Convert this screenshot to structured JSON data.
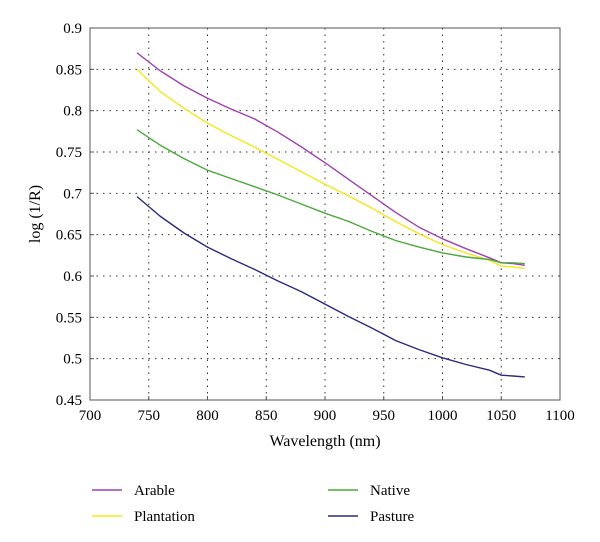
{
  "chart_data": {
    "type": "line",
    "title": "",
    "xlabel": "Wavelength (nm)",
    "ylabel": "log (1/R)",
    "xlim": [
      700,
      1100
    ],
    "ylim": [
      0.45,
      0.9
    ],
    "xticks": [
      700,
      750,
      800,
      850,
      900,
      950,
      1000,
      1050,
      1100
    ],
    "yticks": [
      0.45,
      0.5,
      0.55,
      0.6,
      0.65,
      0.7,
      0.75,
      0.8,
      0.85,
      0.9
    ],
    "xtick_labels": [
      "700",
      "750",
      "800",
      "850",
      "900",
      "950",
      "1000",
      "1050",
      "1100"
    ],
    "ytick_labels": [
      "0.45",
      "0.5",
      "0.55",
      "0.6",
      "0.65",
      "0.7",
      "0.75",
      "0.8",
      "0.85",
      "0.9"
    ],
    "grid": "dotted",
    "legend_position": "bottom",
    "series": [
      {
        "name": "Arable",
        "color": "#a040b0",
        "x": [
          740,
          760,
          780,
          800,
          820,
          840,
          860,
          880,
          900,
          920,
          940,
          960,
          980,
          1000,
          1020,
          1040,
          1050,
          1060,
          1070
        ],
        "y": [
          0.87,
          0.848,
          0.83,
          0.815,
          0.802,
          0.79,
          0.774,
          0.756,
          0.737,
          0.717,
          0.697,
          0.677,
          0.659,
          0.645,
          0.633,
          0.622,
          0.616,
          0.615,
          0.613
        ]
      },
      {
        "name": "Plantation",
        "color": "#f4e818",
        "x": [
          740,
          760,
          780,
          800,
          820,
          840,
          860,
          880,
          900,
          920,
          940,
          960,
          980,
          1000,
          1020,
          1040,
          1050,
          1060,
          1070
        ],
        "y": [
          0.85,
          0.823,
          0.803,
          0.785,
          0.77,
          0.756,
          0.741,
          0.726,
          0.711,
          0.697,
          0.682,
          0.666,
          0.651,
          0.638,
          0.628,
          0.619,
          0.612,
          0.611,
          0.609
        ]
      },
      {
        "name": "Native",
        "color": "#4aaa3a",
        "x": [
          740,
          760,
          780,
          800,
          820,
          840,
          860,
          880,
          900,
          920,
          940,
          960,
          980,
          1000,
          1020,
          1040,
          1050,
          1060,
          1070
        ],
        "y": [
          0.777,
          0.758,
          0.742,
          0.728,
          0.718,
          0.708,
          0.698,
          0.687,
          0.676,
          0.666,
          0.654,
          0.643,
          0.635,
          0.628,
          0.623,
          0.62,
          0.616,
          0.616,
          0.615
        ]
      },
      {
        "name": "Pasture",
        "color": "#2a2a80",
        "x": [
          740,
          760,
          780,
          800,
          820,
          840,
          860,
          880,
          900,
          920,
          940,
          960,
          980,
          1000,
          1020,
          1040,
          1050,
          1060,
          1070
        ],
        "y": [
          0.696,
          0.672,
          0.652,
          0.635,
          0.621,
          0.608,
          0.594,
          0.581,
          0.566,
          0.551,
          0.537,
          0.522,
          0.511,
          0.501,
          0.493,
          0.486,
          0.48,
          0.479,
          0.478
        ]
      }
    ]
  }
}
